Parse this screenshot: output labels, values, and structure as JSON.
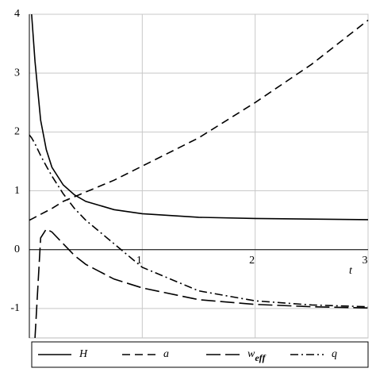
{
  "chart_data": {
    "type": "line",
    "x_label": "t",
    "x": [
      0,
      0.02,
      0.05,
      0.1,
      0.15,
      0.2,
      0.3,
      0.4,
      0.5,
      0.75,
      1,
      1.5,
      2,
      2.5,
      3
    ],
    "series": [
      {
        "name": "H",
        "color": "#000000",
        "dash": "none",
        "values": [
          null,
          4,
          3.2,
          2.2,
          1.7,
          1.4,
          1.1,
          0.93,
          0.82,
          0.68,
          0.61,
          0.55,
          0.53,
          0.52,
          0.51
        ]
      },
      {
        "name": "a",
        "color": "#000000",
        "dash": "10,6",
        "values": [
          0.5,
          0.52,
          0.55,
          0.6,
          0.65,
          0.7,
          0.82,
          0.9,
          0.98,
          1.18,
          1.42,
          1.9,
          2.5,
          3.15,
          3.9
        ]
      },
      {
        "name": "weff",
        "color": "#000000",
        "dash": "18,6",
        "values": [
          null,
          null,
          -1.5,
          0.2,
          0.35,
          0.3,
          0.1,
          -0.1,
          -0.25,
          -0.5,
          -0.65,
          -0.85,
          -0.93,
          -0.97,
          -0.99
        ]
      },
      {
        "name": "q",
        "color": "#000000",
        "dash": "10,4,2,4",
        "values": [
          1.95,
          1.9,
          1.8,
          1.6,
          1.42,
          1.25,
          0.95,
          0.7,
          0.5,
          0.1,
          -0.3,
          -0.7,
          -0.87,
          -0.94,
          -0.97
        ]
      }
    ],
    "xlim": [
      0,
      3
    ],
    "ylim": [
      -1.5,
      4
    ],
    "xticks": [
      1,
      2,
      3
    ],
    "yticks": [
      -1,
      0,
      1,
      2,
      3,
      4
    ],
    "grid": true
  }
}
